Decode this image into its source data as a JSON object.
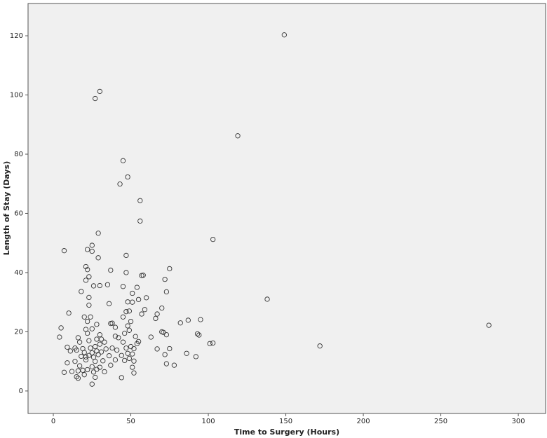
{
  "chart_data": {
    "type": "scatter",
    "x_label": "Time to Surgery (Hours)",
    "y_label": "Length of Stay (Days)",
    "xlim": [
      -16.3,
      317.6
    ],
    "ylim": [
      -7.6,
      130.9
    ],
    "xticks": [
      0,
      50,
      100,
      150,
      200,
      250,
      300
    ],
    "yticks": [
      0,
      20,
      40,
      60,
      80,
      100,
      120
    ],
    "marker_color": "#333333",
    "x": [
      149,
      27,
      30,
      119,
      45,
      48,
      43,
      56,
      56,
      103,
      29,
      7,
      22,
      25,
      25,
      47,
      29,
      21,
      22,
      37,
      47,
      58,
      75,
      23,
      21,
      72,
      45,
      35,
      26,
      30,
      18,
      73,
      54,
      51,
      23,
      60,
      138,
      36,
      51,
      23,
      48,
      55,
      59,
      70,
      10,
      47,
      49,
      67,
      66,
      20,
      24,
      45,
      87,
      95,
      82,
      281,
      5,
      28,
      37,
      38,
      50,
      22,
      40,
      48,
      21,
      25,
      70,
      93,
      94,
      71,
      73,
      4,
      16,
      22,
      30,
      42,
      53,
      63,
      101,
      103,
      172,
      17,
      23,
      28,
      33,
      45,
      54,
      55,
      9,
      14,
      19,
      24,
      27,
      30,
      34,
      38,
      47,
      50,
      52,
      67,
      75,
      11,
      15,
      20,
      25,
      28,
      31,
      41,
      48,
      51,
      86,
      92,
      18,
      21,
      23,
      26,
      29,
      36,
      44,
      49,
      72,
      9,
      14,
      21,
      27,
      32,
      40,
      46,
      52,
      73,
      78,
      17,
      25,
      30,
      37,
      51,
      19,
      22,
      28,
      12,
      7,
      16,
      26,
      33,
      52,
      20,
      15,
      27,
      44,
      16,
      25,
      31,
      40,
      46,
      49,
      57,
      57
    ],
    "y": [
      120.3,
      98.8,
      101.2,
      86.2,
      77.8,
      72.3,
      69.9,
      64.3,
      57.4,
      51.2,
      53.3,
      47.4,
      47.8,
      49.2,
      47.2,
      45.8,
      45,
      42,
      41,
      40.8,
      40,
      39.1,
      41.3,
      38.6,
      37.4,
      37.7,
      35.3,
      35.9,
      35.5,
      35.6,
      33.6,
      33.5,
      35,
      33,
      31.6,
      31.5,
      31,
      29.5,
      30,
      29,
      30.1,
      30.9,
      27.5,
      28,
      26.3,
      26.8,
      27,
      26,
      24.5,
      25,
      25,
      25,
      23.9,
      24.1,
      23,
      22.2,
      21.3,
      22.5,
      22.8,
      22.9,
      23.5,
      23.5,
      21.5,
      22,
      20.8,
      21,
      20,
      19.3,
      18.9,
      19.8,
      19,
      18.2,
      18,
      19.5,
      19,
      18,
      18.4,
      18.2,
      16,
      16.2,
      15.2,
      16.5,
      17,
      17.5,
      16.5,
      16.5,
      16,
      16.7,
      14.8,
      14.5,
      14.3,
      14.5,
      15,
      15.8,
      14.2,
      14.5,
      14.5,
      15,
      14.3,
      14.2,
      14.3,
      13.5,
      13.8,
      13,
      12.9,
      13.5,
      13.2,
      13.8,
      12.7,
      12.5,
      12.7,
      11.6,
      11.7,
      11.5,
      12,
      11.4,
      12.3,
      11.9,
      12,
      11,
      12.3,
      9.5,
      10,
      10.5,
      10,
      10.2,
      10.5,
      10.3,
      10.1,
      9.2,
      8.7,
      8.5,
      8.2,
      8,
      8.7,
      8,
      7,
      7.2,
      7.3,
      6.6,
      6.3,
      6.8,
      6.4,
      6.5,
      6.1,
      5.5,
      4.8,
      4.6,
      4.5,
      4.3,
      2.3,
      17.5,
      18.5,
      19.5,
      20.5,
      39,
      26
    ]
  }
}
